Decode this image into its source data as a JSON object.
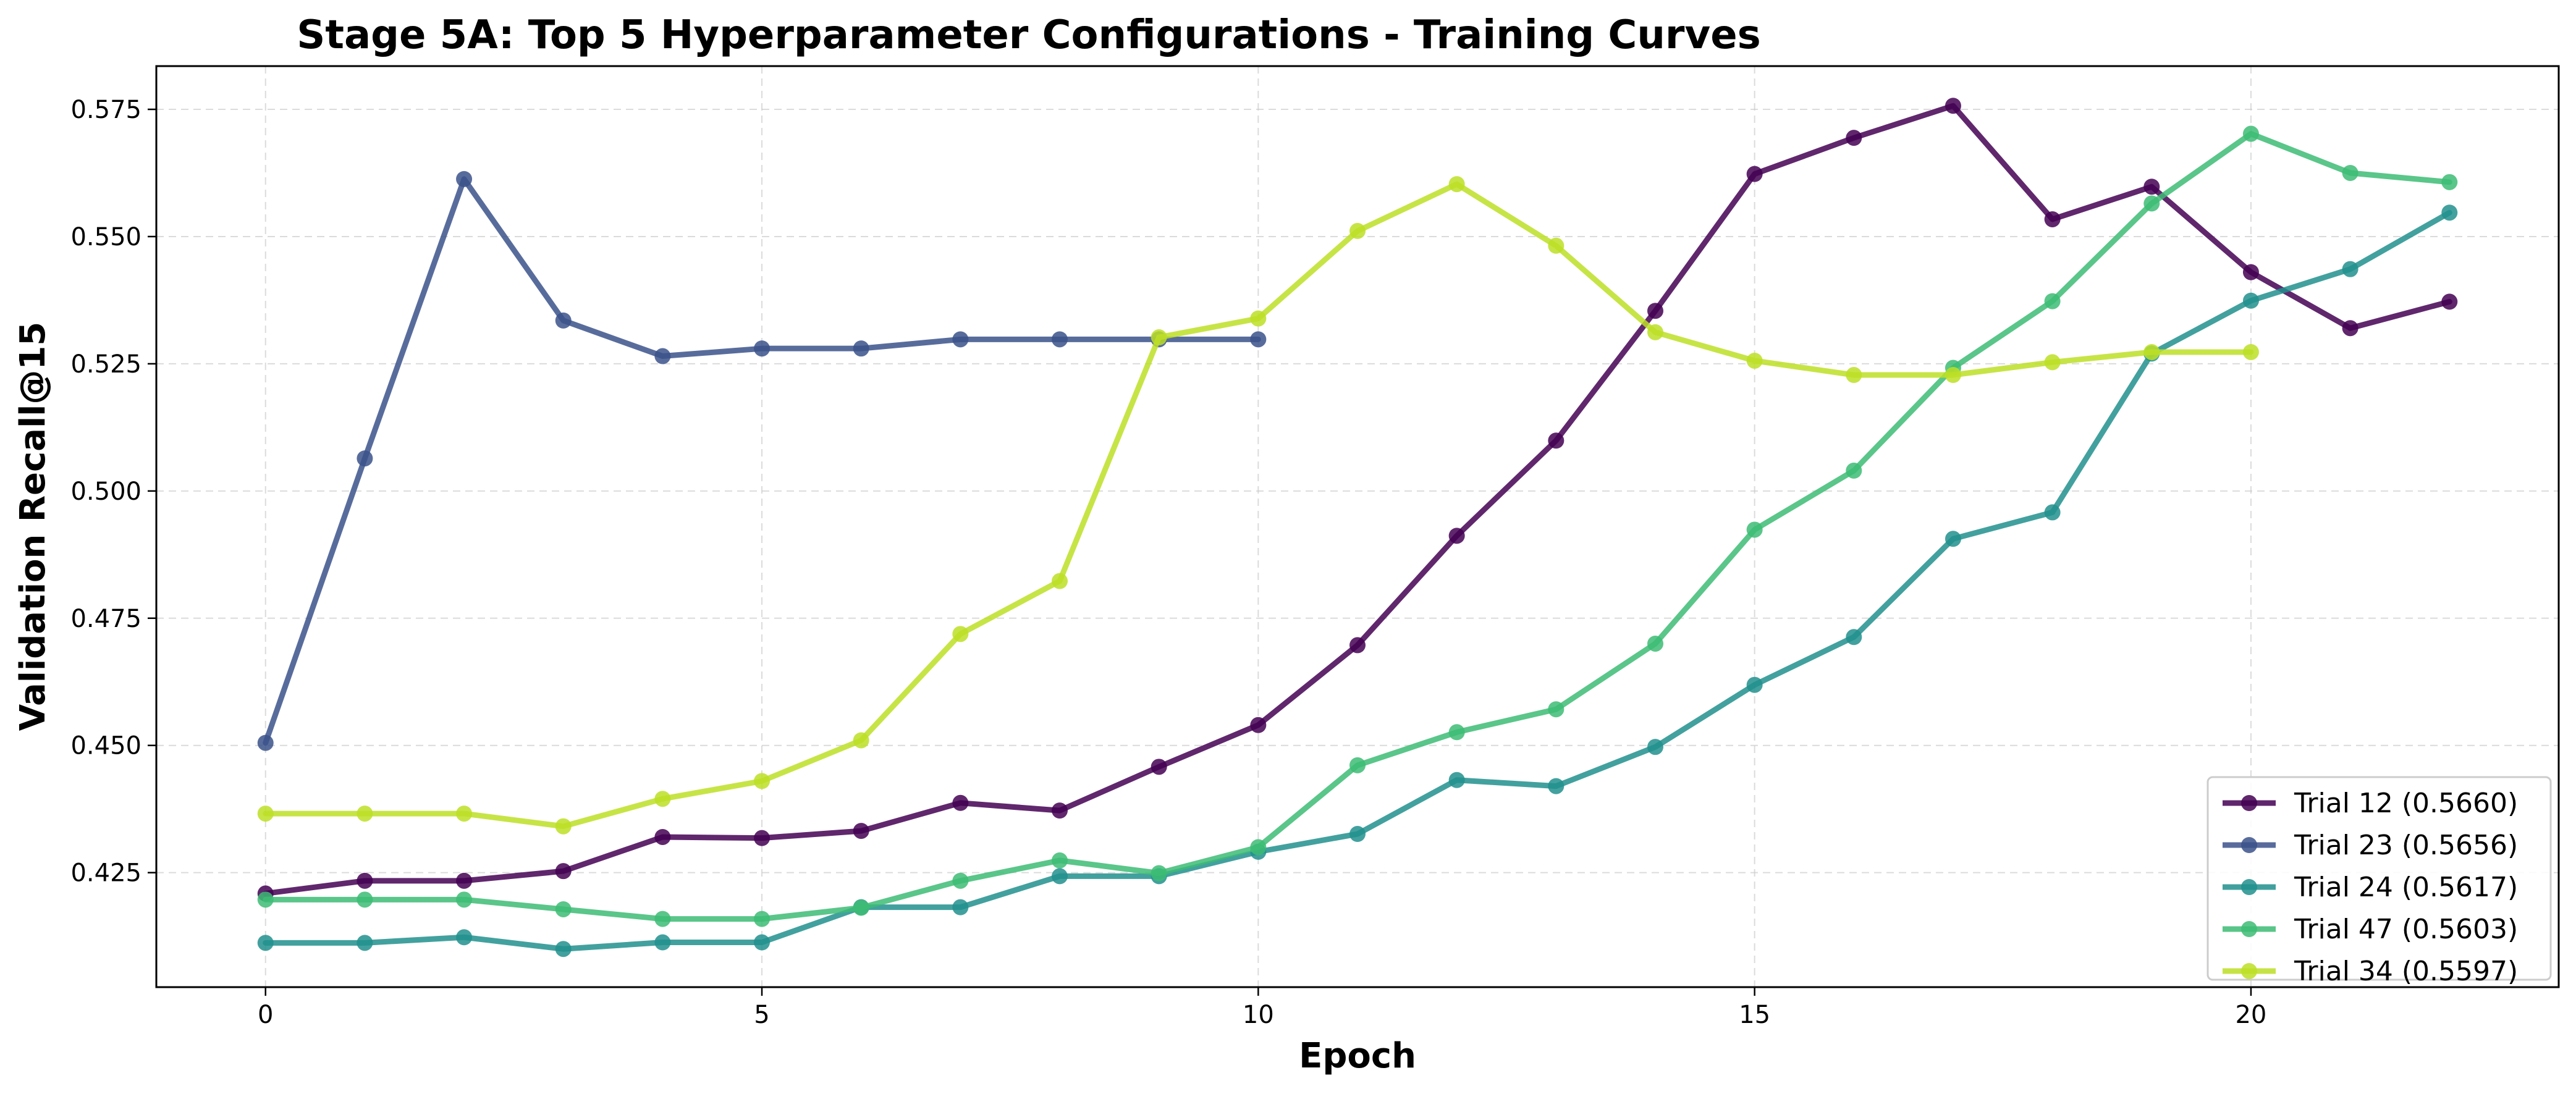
{
  "chart_data": {
    "type": "line",
    "title": "Stage 5A: Top 5 Hyperparameter Configurations - Training Curves",
    "xlabel": "Epoch",
    "ylabel": "Validation Recall@15",
    "xlim": [
      -1.1,
      23.1
    ],
    "ylim": [
      0.4025,
      0.5835
    ],
    "xticks": [
      "0",
      "5",
      "10",
      "15",
      "20"
    ],
    "yticks": [
      "0.425",
      "0.450",
      "0.475",
      "0.500",
      "0.525",
      "0.550",
      "0.575"
    ],
    "grid": true,
    "legend_position": "lower-right",
    "series": [
      {
        "name": "Trial 12 (0.5660)",
        "color": "#440154",
        "x": [
          0,
          1,
          2,
          3,
          4,
          5,
          6,
          7,
          8,
          9,
          10,
          11,
          12,
          13,
          14,
          15,
          16,
          17,
          18,
          19,
          20,
          21,
          22
        ],
        "values": [
          0.4209,
          0.4234,
          0.4234,
          0.4253,
          0.432,
          0.4318,
          0.4332,
          0.4387,
          0.4372,
          0.4458,
          0.454,
          0.4697,
          0.4912,
          0.5099,
          0.5354,
          0.5623,
          0.5694,
          0.5757,
          0.5534,
          0.5598,
          0.543,
          0.532,
          0.5372
        ]
      },
      {
        "name": "Trial 23 (0.5656)",
        "color": "#3b528b",
        "x": [
          0,
          1,
          2,
          3,
          4,
          5,
          6,
          7,
          8,
          9,
          10
        ],
        "values": [
          0.4505,
          0.5064,
          0.5613,
          0.5335,
          0.5265,
          0.528,
          0.528,
          0.5298,
          0.5298,
          0.5298,
          0.5298
        ]
      },
      {
        "name": "Trial 24 (0.5617)",
        "color": "#21908d",
        "x": [
          0,
          1,
          2,
          3,
          4,
          5,
          6,
          7,
          8,
          9,
          10,
          11,
          12,
          13,
          14,
          15,
          16,
          17,
          18,
          19,
          20,
          21,
          22
        ],
        "values": [
          0.4112,
          0.4112,
          0.4123,
          0.41,
          0.4113,
          0.4113,
          0.4182,
          0.4182,
          0.4243,
          0.4243,
          0.4291,
          0.4326,
          0.4432,
          0.442,
          0.4497,
          0.4619,
          0.4713,
          0.4906,
          0.4958,
          0.527,
          0.5374,
          0.5436,
          0.5547
        ]
      },
      {
        "name": "Trial 47 (0.5603)",
        "color": "#3dbc74",
        "x": [
          0,
          1,
          2,
          3,
          4,
          5,
          6,
          7,
          8,
          9,
          10,
          11,
          12,
          13,
          14,
          15,
          16,
          17,
          18,
          19,
          20,
          21,
          22
        ],
        "values": [
          0.4197,
          0.4197,
          0.4197,
          0.4178,
          0.4159,
          0.4159,
          0.4181,
          0.4234,
          0.4274,
          0.4249,
          0.43,
          0.4461,
          0.4526,
          0.4571,
          0.47,
          0.4924,
          0.504,
          0.5242,
          0.5373,
          0.5565,
          0.5702,
          0.5625,
          0.5607
        ]
      },
      {
        "name": "Trial 34 (0.5597)",
        "color": "#bddf26",
        "x": [
          0,
          1,
          2,
          3,
          4,
          5,
          6,
          7,
          8,
          9,
          10,
          11,
          12,
          13,
          14,
          15,
          16,
          17,
          18,
          19,
          20
        ],
        "values": [
          0.4366,
          0.4366,
          0.4366,
          0.4341,
          0.4395,
          0.443,
          0.451,
          0.4719,
          0.4823,
          0.5302,
          0.5339,
          0.5511,
          0.5603,
          0.5482,
          0.5312,
          0.5256,
          0.5228,
          0.5228,
          0.5253,
          0.5273,
          0.5273
        ]
      }
    ]
  }
}
